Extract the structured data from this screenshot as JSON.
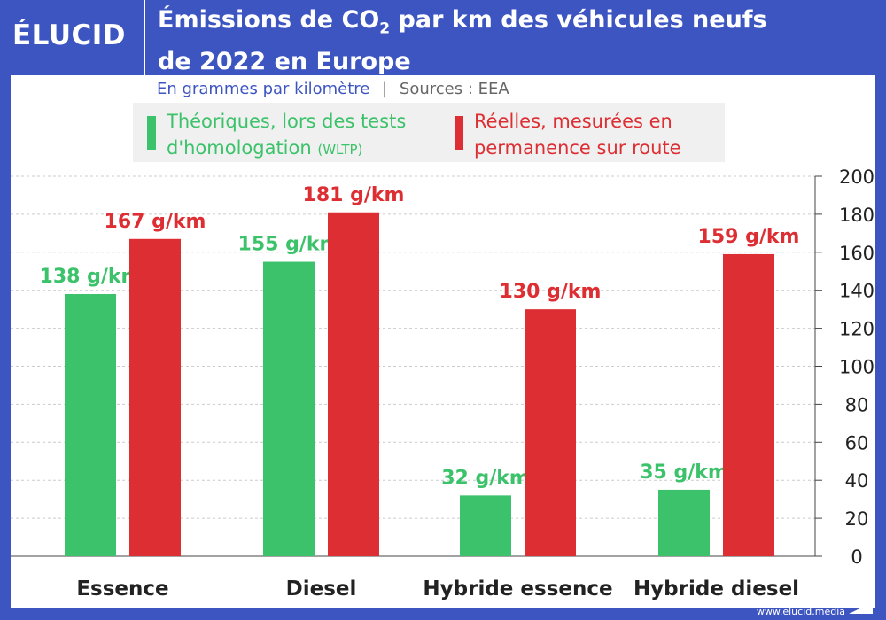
{
  "logo": "ÉLUCID",
  "title": {
    "line1_pre": "Émissions de CO",
    "line1_sub": "2",
    "line1_post": " par km des véhicules neufs",
    "line2": "de 2022 en Europe"
  },
  "subtitle": {
    "unit": "En grammes par kilomètre",
    "sep": "|",
    "source": "Sources : EEA"
  },
  "footer": "www.elucid.media",
  "colors": {
    "frame": "#3d55c1",
    "theoretical": "#3cc26a",
    "real": "#dd2f33"
  },
  "chart_data": {
    "type": "bar",
    "categories": [
      "Essence",
      "Diesel",
      "Hybride essence",
      "Hybride diesel"
    ],
    "series": [
      {
        "name": "Théoriques, lors des tests d'homologation (WLTP)",
        "name_line1": "Théoriques, lors des tests",
        "name_line2": "d'homologation",
        "name_suffix": "(WLTP)",
        "values": [
          138,
          155,
          32,
          35
        ],
        "labels": [
          "138 g/km",
          "155 g/km",
          "32 g/km",
          "35 g/km"
        ]
      },
      {
        "name": "Réelles, mesurées en permanence sur route",
        "name_line1": "Réelles, mesurées en",
        "name_line2": "permanence sur route",
        "values": [
          167,
          181,
          130,
          159
        ],
        "labels": [
          "167 g/km",
          "181 g/km",
          "130 g/km",
          "159 g/km"
        ]
      }
    ],
    "ylim": [
      0,
      200
    ],
    "yticks": [
      "0",
      "20",
      "40",
      "60",
      "80",
      "100",
      "120",
      "140",
      "160",
      "180",
      "200"
    ],
    "grid": true,
    "legend": "top"
  }
}
